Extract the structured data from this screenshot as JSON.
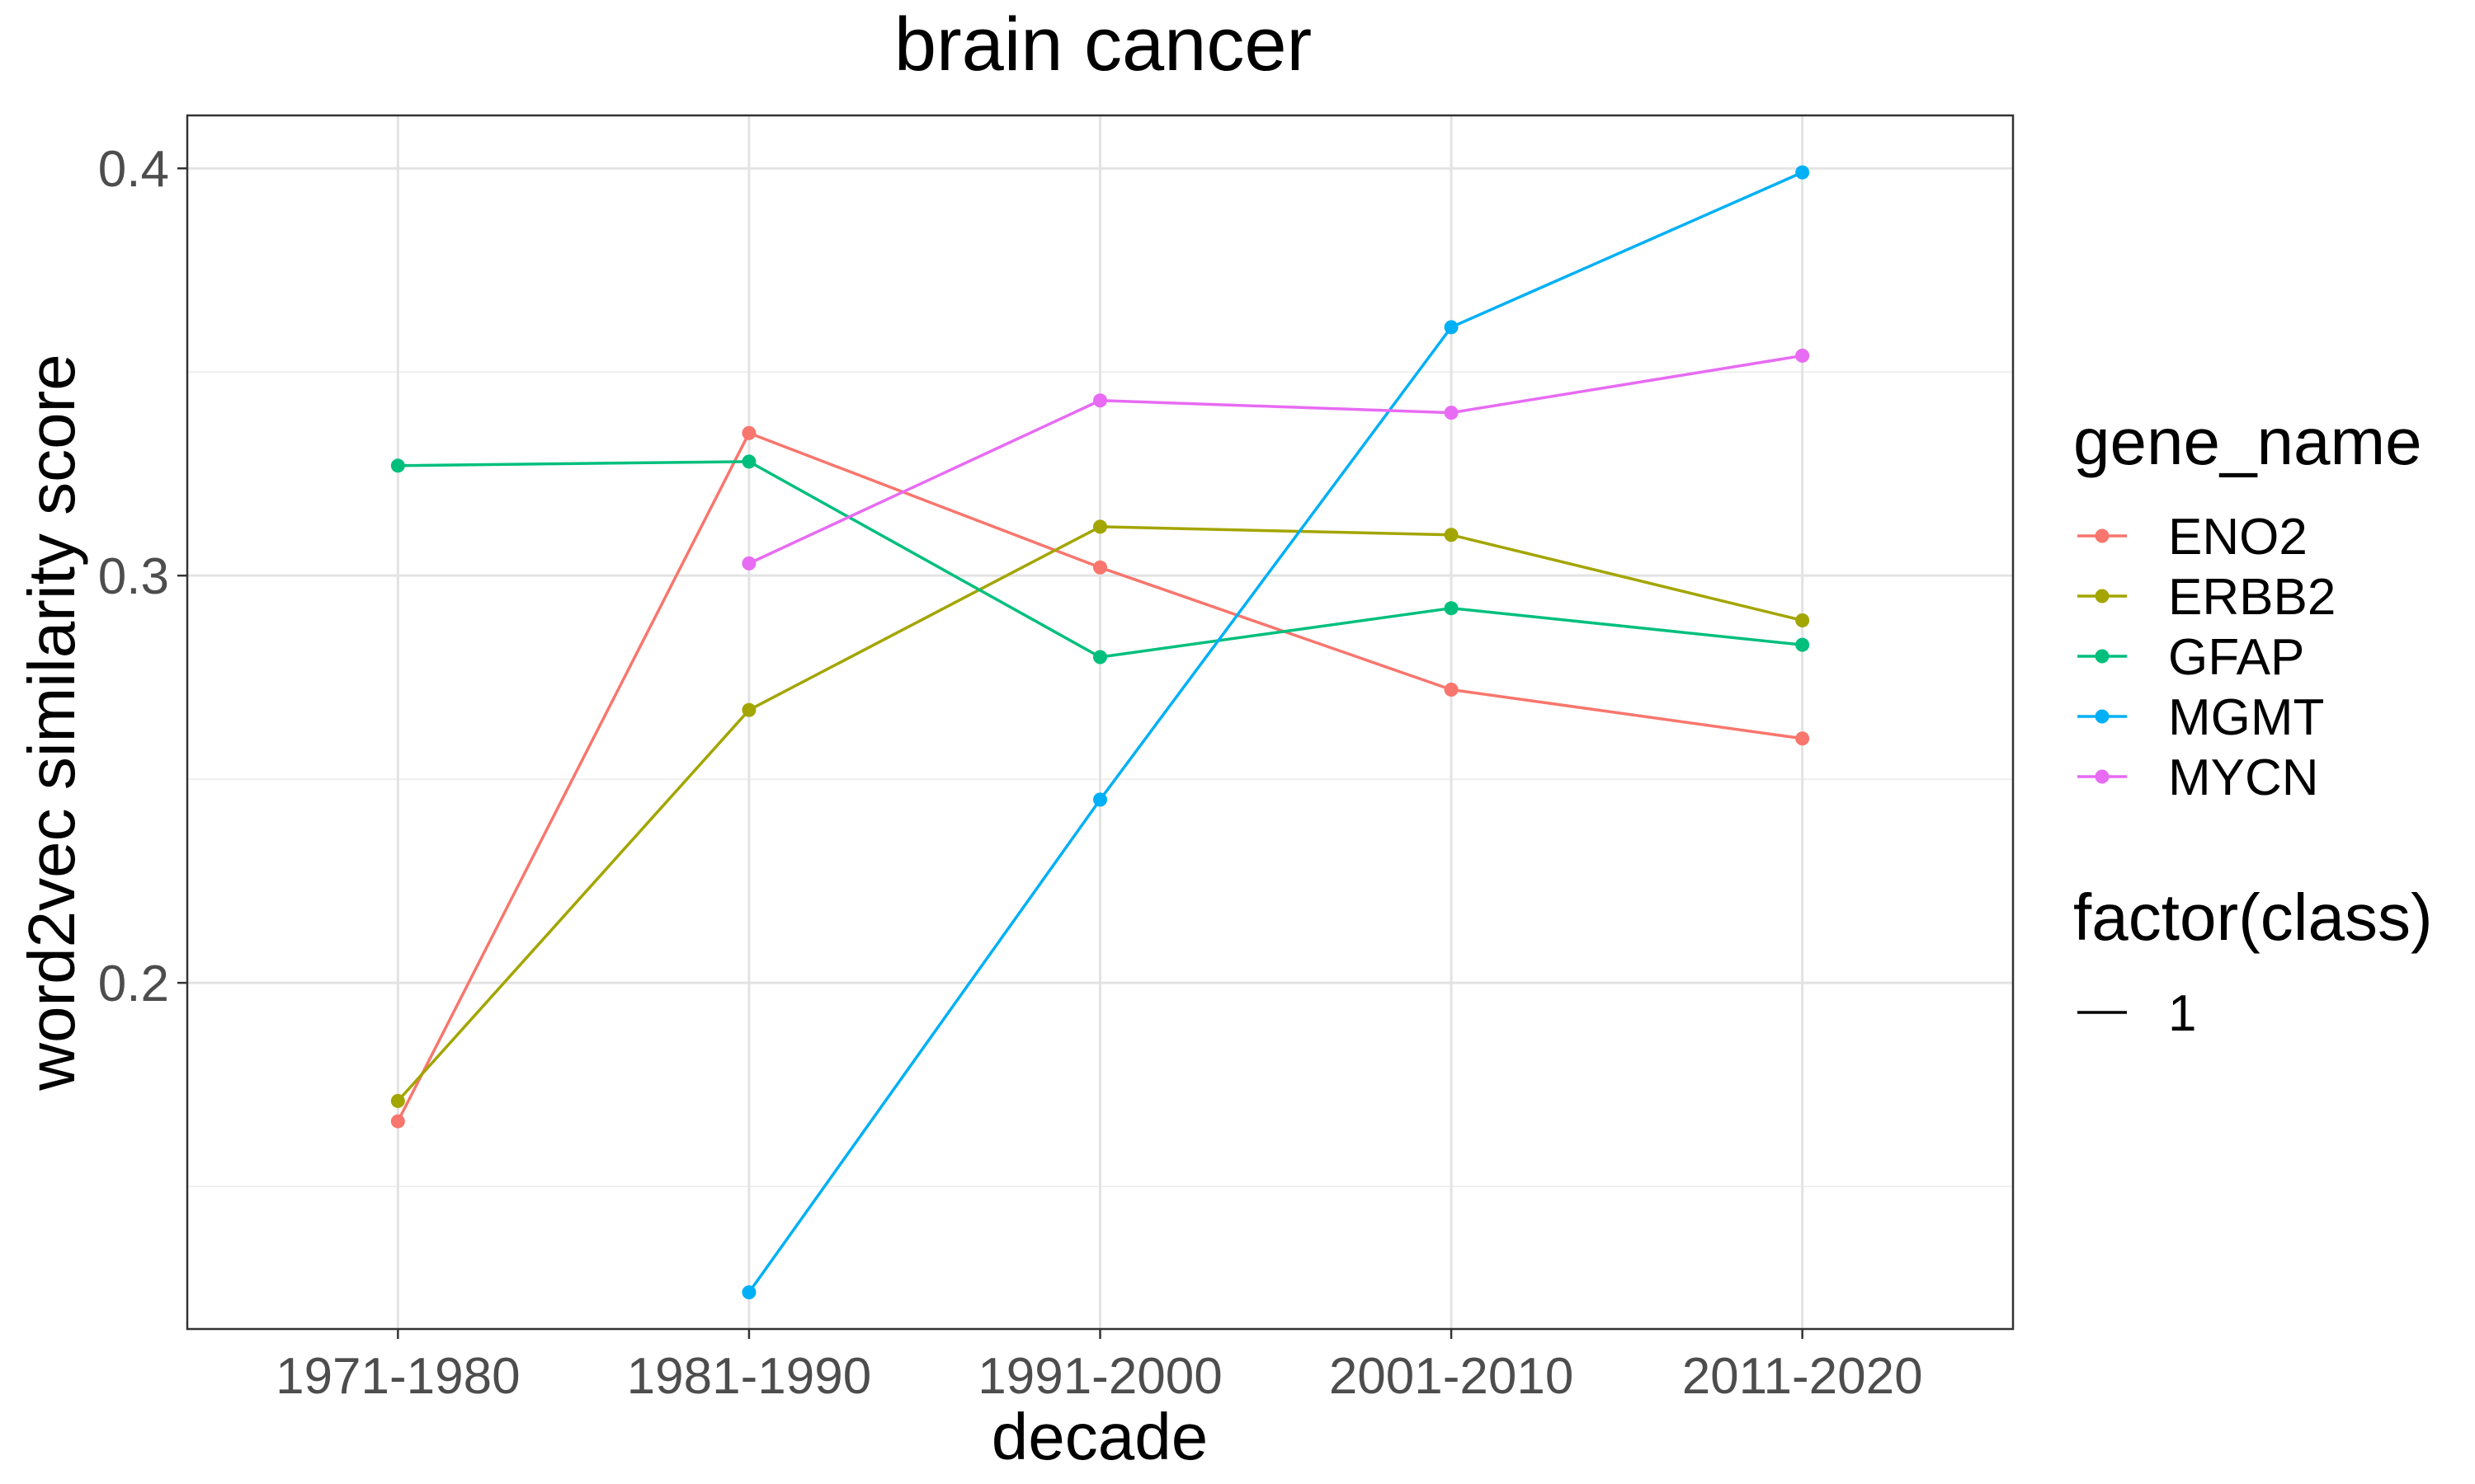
{
  "chart_data": {
    "type": "line",
    "title": "brain cancer",
    "xlabel": "decade",
    "ylabel": "word2vec similarity score",
    "categories": [
      "1971-1980",
      "1981-1990",
      "1991-2000",
      "2001-2010",
      "2011-2020"
    ],
    "ylim": [
      0.115,
      0.413
    ],
    "yticks": [
      0.2,
      0.3,
      0.4
    ],
    "ytick_labels": [
      "0.2",
      "0.3",
      "0.4"
    ],
    "grid": true,
    "legend_position": "right",
    "legend_color_title": "gene_name",
    "legend_line_title": "factor(class)",
    "legend_line_entries": [
      "1"
    ],
    "series": [
      {
        "name": "ENO2",
        "color": "#F8766D",
        "values": [
          0.166,
          0.335,
          0.302,
          0.272,
          0.26
        ]
      },
      {
        "name": "ERBB2",
        "color": "#A3A500",
        "values": [
          0.171,
          0.267,
          0.312,
          0.31,
          0.289
        ]
      },
      {
        "name": "GFAP",
        "color": "#00BF7D",
        "values": [
          0.327,
          0.328,
          0.28,
          0.292,
          0.283
        ]
      },
      {
        "name": "MGMT",
        "color": "#00B0F6",
        "values": [
          null,
          0.124,
          0.245,
          0.361,
          0.399
        ]
      },
      {
        "name": "MYCN",
        "color": "#E76BF3",
        "values": [
          null,
          0.303,
          0.343,
          0.34,
          0.354
        ]
      }
    ]
  }
}
